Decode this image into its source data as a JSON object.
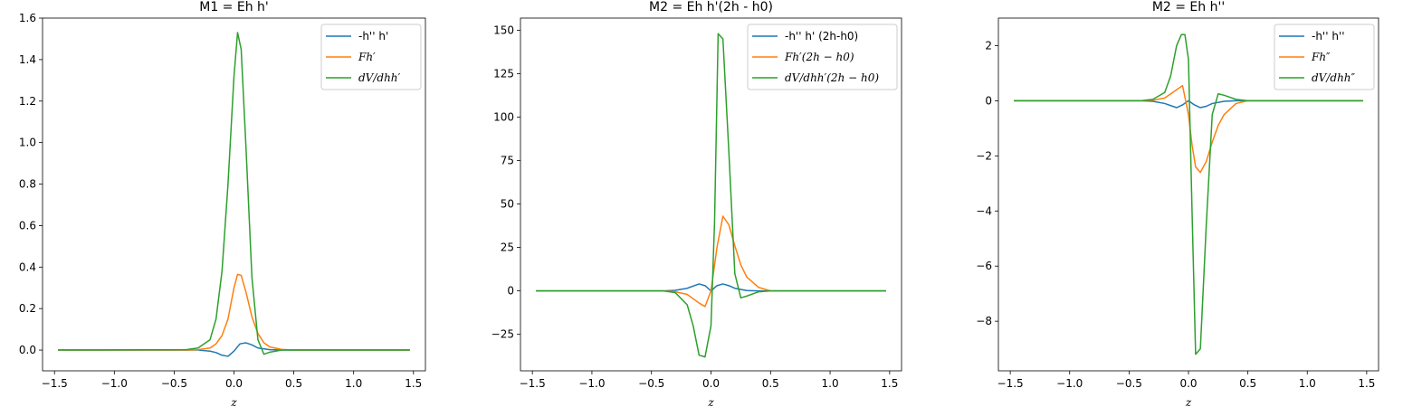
{
  "chart_data": [
    {
      "type": "line",
      "title": "M1 = Eh h'",
      "xlabel": "z",
      "xlim": [
        -1.6,
        1.6
      ],
      "ylim": [
        -0.1,
        1.6
      ],
      "xticks": [
        -1.5,
        -1.0,
        -0.5,
        0.0,
        0.5,
        1.0,
        1.5
      ],
      "xtick_labels": [
        "−1.5",
        "−1.0",
        "−0.5",
        "0.0",
        "0.5",
        "1.0",
        "1.5"
      ],
      "yticks": [
        0.0,
        0.2,
        0.4,
        0.6,
        0.8,
        1.0,
        1.2,
        1.4,
        1.6
      ],
      "ytick_labels": [
        "0.0",
        "0.2",
        "0.4",
        "0.6",
        "0.8",
        "1.0",
        "1.2",
        "1.4",
        "1.6"
      ],
      "legend_position": "top-right",
      "series": [
        {
          "name": "-h'' h'",
          "color": "#1f77b4",
          "x": [
            -1.47,
            -0.4,
            -0.3,
            -0.2,
            -0.15,
            -0.1,
            -0.05,
            0.0,
            0.05,
            0.1,
            0.15,
            0.2,
            0.3,
            0.4,
            0.5,
            1.47
          ],
          "y": [
            0,
            0,
            0,
            -0.005,
            -0.012,
            -0.025,
            -0.03,
            -0.005,
            0.03,
            0.035,
            0.025,
            0.01,
            0.002,
            0,
            0,
            0
          ]
        },
        {
          "name": "Fh′",
          "color": "#ff7f0e",
          "x": [
            -1.47,
            -0.4,
            -0.3,
            -0.2,
            -0.15,
            -0.1,
            -0.05,
            0.0,
            0.03,
            0.06,
            0.1,
            0.15,
            0.2,
            0.25,
            0.3,
            0.4,
            0.5,
            1.47
          ],
          "y": [
            0,
            0,
            0.002,
            0.01,
            0.03,
            0.07,
            0.15,
            0.3,
            0.365,
            0.36,
            0.28,
            0.16,
            0.08,
            0.035,
            0.015,
            0.003,
            0,
            0
          ]
        },
        {
          "name": "dV/dhh′",
          "color": "#2ca02c",
          "x": [
            -1.47,
            -0.4,
            -0.3,
            -0.2,
            -0.15,
            -0.1,
            -0.05,
            0.0,
            0.03,
            0.06,
            0.1,
            0.15,
            0.2,
            0.25,
            0.3,
            0.4,
            0.5,
            1.47
          ],
          "y": [
            0,
            0.002,
            0.01,
            0.05,
            0.15,
            0.38,
            0.8,
            1.32,
            1.53,
            1.45,
            0.98,
            0.35,
            0.05,
            -0.02,
            -0.01,
            0,
            0,
            0
          ]
        }
      ]
    },
    {
      "type": "line",
      "title": "M2 = Eh h'(2h - h0)",
      "xlabel": "z",
      "xlim": [
        -1.6,
        1.6
      ],
      "ylim": [
        -46,
        157
      ],
      "xticks": [
        -1.5,
        -1.0,
        -0.5,
        0.0,
        0.5,
        1.0,
        1.5
      ],
      "xtick_labels": [
        "−1.5",
        "−1.0",
        "−0.5",
        "0.0",
        "0.5",
        "1.0",
        "1.5"
      ],
      "yticks": [
        -25,
        0,
        25,
        50,
        75,
        100,
        125,
        150
      ],
      "ytick_labels": [
        "−25",
        "0",
        "25",
        "50",
        "75",
        "100",
        "125",
        "150"
      ],
      "legend_position": "top-right",
      "series": [
        {
          "name": "-h'' h' (2h-h0)",
          "color": "#1f77b4",
          "x": [
            -1.47,
            -0.4,
            -0.3,
            -0.2,
            -0.1,
            -0.05,
            0.0,
            0.05,
            0.1,
            0.15,
            0.2,
            0.3,
            0.4,
            0.5,
            1.47
          ],
          "y": [
            0,
            0,
            0.3,
            1.5,
            4,
            3,
            0,
            3,
            4,
            3,
            1.5,
            0.2,
            0,
            0,
            0
          ]
        },
        {
          "name": "Fh′(2h − h0)",
          "color": "#ff7f0e",
          "x": [
            -1.47,
            -0.4,
            -0.3,
            -0.2,
            -0.1,
            -0.05,
            0.0,
            0.05,
            0.1,
            0.15,
            0.2,
            0.25,
            0.3,
            0.4,
            0.5,
            1.47
          ],
          "y": [
            0,
            0,
            -0.5,
            -2,
            -7,
            -9,
            0,
            25,
            43,
            38,
            26,
            15,
            8,
            2,
            0,
            0
          ]
        },
        {
          "name": "dV/dhh′(2h − h0)",
          "color": "#2ca02c",
          "x": [
            -1.47,
            -0.4,
            -0.3,
            -0.2,
            -0.15,
            -0.1,
            -0.05,
            0.0,
            0.03,
            0.06,
            0.1,
            0.15,
            0.2,
            0.25,
            0.3,
            0.4,
            0.5,
            1.47
          ],
          "y": [
            0,
            0,
            -1,
            -8,
            -20,
            -37,
            -38,
            -20,
            40,
            148,
            145,
            80,
            10,
            -4,
            -3,
            -0.5,
            0,
            0
          ]
        }
      ]
    },
    {
      "type": "line",
      "title": "M2 = Eh h''",
      "xlabel": "z",
      "xlim": [
        -1.6,
        1.6
      ],
      "ylim": [
        -9.8,
        3.0
      ],
      "xticks": [
        -1.5,
        -1.0,
        -0.5,
        0.0,
        0.5,
        1.0,
        1.5
      ],
      "xtick_labels": [
        "−1.5",
        "−1.0",
        "−0.5",
        "0.0",
        "0.5",
        "1.0",
        "1.5"
      ],
      "yticks": [
        -8,
        -6,
        -4,
        -2,
        0,
        2
      ],
      "ytick_labels": [
        "−8",
        "−6",
        "−4",
        "−2",
        "0",
        "2"
      ],
      "legend_position": "top-right",
      "series": [
        {
          "name": "-h'' h''",
          "color": "#1f77b4",
          "x": [
            -1.47,
            -0.4,
            -0.3,
            -0.2,
            -0.1,
            -0.05,
            0.0,
            0.05,
            0.1,
            0.15,
            0.2,
            0.3,
            0.4,
            0.5,
            1.47
          ],
          "y": [
            0,
            0,
            -0.02,
            -0.1,
            -0.25,
            -0.15,
            0,
            -0.15,
            -0.25,
            -0.2,
            -0.1,
            -0.02,
            0,
            0,
            0
          ]
        },
        {
          "name": "Fh″",
          "color": "#ff7f0e",
          "x": [
            -1.47,
            -0.4,
            -0.3,
            -0.2,
            -0.1,
            -0.05,
            0.0,
            0.03,
            0.06,
            0.1,
            0.15,
            0.2,
            0.25,
            0.3,
            0.4,
            0.5,
            1.47
          ],
          "y": [
            0,
            0,
            0.02,
            0.1,
            0.4,
            0.55,
            -0.5,
            -1.6,
            -2.4,
            -2.6,
            -2.2,
            -1.5,
            -0.9,
            -0.5,
            -0.1,
            0,
            0
          ]
        },
        {
          "name": "dV/dhh″",
          "color": "#2ca02c",
          "x": [
            -1.47,
            -0.4,
            -0.3,
            -0.2,
            -0.15,
            -0.1,
            -0.06,
            -0.03,
            0.0,
            0.03,
            0.06,
            0.1,
            0.15,
            0.2,
            0.25,
            0.3,
            0.4,
            0.5,
            1.47
          ],
          "y": [
            0,
            0,
            0.05,
            0.3,
            0.9,
            2.0,
            2.4,
            2.4,
            1.5,
            -4.0,
            -9.2,
            -9.0,
            -4.5,
            -0.5,
            0.25,
            0.2,
            0.05,
            0,
            0
          ]
        }
      ]
    }
  ]
}
